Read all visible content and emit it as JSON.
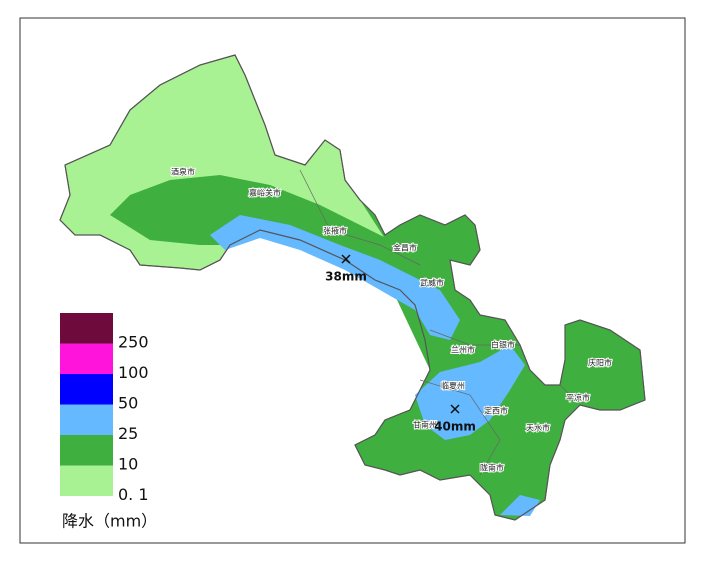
{
  "map": {
    "cities": [
      "酒泉市",
      "嘉峪关市",
      "张掖市",
      "金昌市",
      "武威市",
      "兰州市",
      "白银市",
      "临夏州",
      "定西市",
      "甘南州",
      "天水市",
      "陇南市",
      "庆阳市",
      "平凉市"
    ],
    "annotations": [
      "38mm",
      "40mm"
    ],
    "legend": {
      "title": "降水（mm）",
      "items": [
        {
          "label": "250",
          "color": "#6e0a3c"
        },
        {
          "label": "100",
          "color": "#ff14dc"
        },
        {
          "label": "50",
          "color": "#0000ff"
        },
        {
          "label": "25",
          "color": "#64b9ff"
        },
        {
          "label": "10",
          "color": "#3fb03f"
        },
        {
          "label": "0. 1",
          "color": "#a8f293"
        }
      ]
    }
  }
}
